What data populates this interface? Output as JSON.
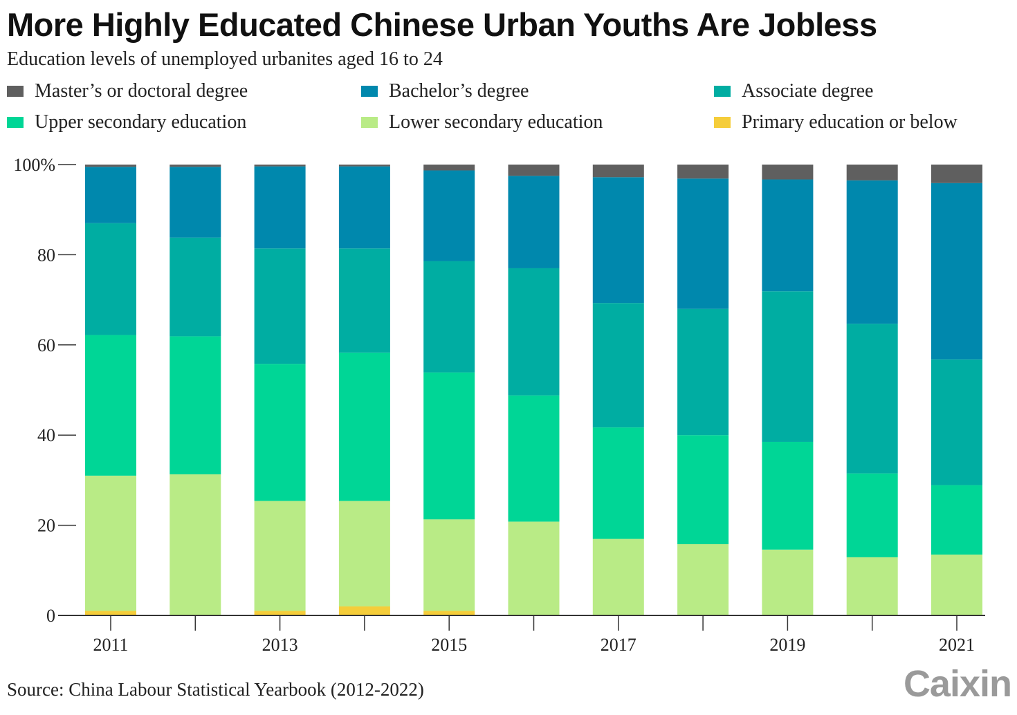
{
  "header": {
    "title": "More Highly Educated Chinese Urban Youths Are Jobless",
    "subtitle": "Education levels of unemployed urbanites aged 16 to 24"
  },
  "legend": [
    {
      "label": "Master’s or doctoral degree",
      "color": "#5f5f5f"
    },
    {
      "label": "Bachelor’s degree",
      "color": "#0088ad"
    },
    {
      "label": "Associate degree",
      "color": "#00ada2"
    },
    {
      "label": "Upper secondary education",
      "color": "#00d696"
    },
    {
      "label": "Lower secondary education",
      "color": "#b9eb86"
    },
    {
      "label": "Primary education or below",
      "color": "#f5cd3a"
    }
  ],
  "chart_data": {
    "type": "bar",
    "stacked": true,
    "title": "More Highly Educated Chinese Urban Youths Are Jobless",
    "subtitle": "Education levels of unemployed urbanites aged 16 to 24",
    "xlabel": "",
    "ylabel": "",
    "ylim": [
      0,
      100
    ],
    "yticks": [
      0,
      20,
      40,
      60,
      80,
      100
    ],
    "ytick_labels": [
      "0",
      "20",
      "40",
      "60",
      "80",
      "100%"
    ],
    "categories": [
      "2011",
      "2012",
      "2013",
      "2014",
      "2015",
      "2016",
      "2017",
      "2018",
      "2019",
      "2020",
      "2021"
    ],
    "xtick_labels": [
      "2011",
      "",
      "2013",
      "",
      "2015",
      "",
      "2017",
      "",
      "2019",
      "",
      "2021"
    ],
    "series": [
      {
        "name": "Primary education or below",
        "color": "#f5cd3a",
        "values": [
          1.0,
          0.0,
          1.0,
          2.0,
          1.0,
          0.0,
          0.0,
          0.0,
          0.0,
          0.0,
          0.0
        ]
      },
      {
        "name": "Lower secondary education",
        "color": "#b9eb86",
        "values": [
          30.0,
          31.3,
          24.4,
          23.4,
          20.3,
          20.8,
          17.0,
          15.8,
          14.6,
          12.9,
          13.5
        ]
      },
      {
        "name": "Upper secondary education",
        "color": "#00d696",
        "values": [
          31.2,
          30.6,
          30.4,
          32.9,
          32.6,
          28.0,
          24.7,
          24.2,
          23.9,
          18.6,
          15.4
        ]
      },
      {
        "name": "Associate degree",
        "color": "#00ada2",
        "values": [
          24.8,
          21.9,
          25.6,
          23.1,
          24.7,
          28.2,
          27.6,
          28.0,
          33.4,
          33.2,
          27.9
        ]
      },
      {
        "name": "Bachelor’s degree",
        "color": "#0088ad",
        "values": [
          12.5,
          15.7,
          18.2,
          18.2,
          20.1,
          20.5,
          27.9,
          28.9,
          24.8,
          31.8,
          39.1
        ]
      },
      {
        "name": "Master’s or doctoral degree",
        "color": "#5f5f5f",
        "values": [
          0.5,
          0.5,
          0.4,
          0.4,
          1.3,
          2.5,
          2.8,
          3.1,
          3.3,
          3.5,
          4.1
        ]
      }
    ]
  },
  "footer": {
    "source": "Source: China Labour Statistical Yearbook (2012-2022)",
    "logo": "Caixin"
  }
}
